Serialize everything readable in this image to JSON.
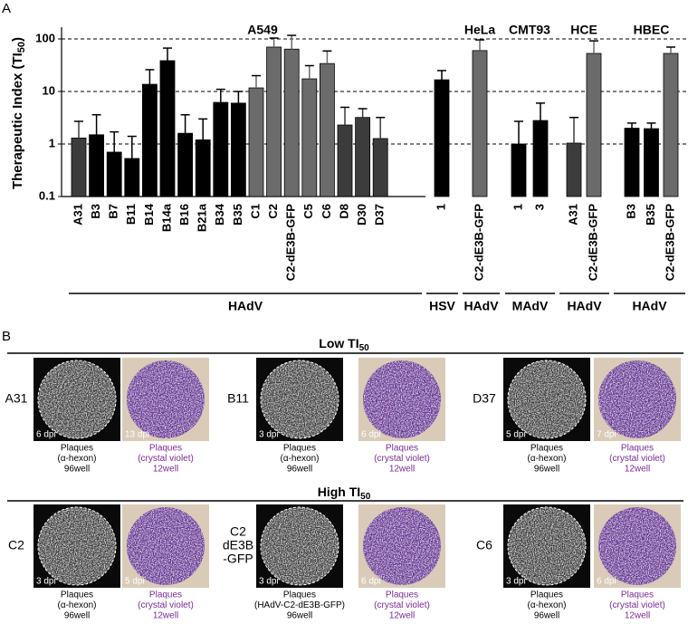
{
  "panel_labels": [
    "A",
    "B"
  ],
  "chart_data": {
    "type": "bar",
    "log_scale": true,
    "ylabel": [
      "Therapeutic Index (TI",
      "50",
      ")"
    ],
    "ylim": [
      0.1,
      100
    ],
    "yticks": [
      0.1,
      1,
      10,
      100
    ],
    "grid": "dashed",
    "groups": [
      {
        "cell_line": "A549",
        "virus": "HAdV",
        "categories": [
          "A31",
          "B3",
          "B7",
          "B11",
          "B14",
          "B14a",
          "B16",
          "B21a",
          "B34",
          "B35",
          "C1",
          "C2",
          "C2-dE3B-GFP",
          "C5",
          "C6",
          "D8",
          "D30",
          "D37"
        ],
        "values": [
          1.3,
          1.5,
          0.7,
          0.53,
          13.7,
          38.6,
          1.6,
          1.2,
          6.2,
          6,
          11.7,
          70,
          64,
          17.4,
          34,
          2.3,
          3.2,
          1.27
        ],
        "errors": [
          1.4,
          2.1,
          1.0,
          0.87,
          12.3,
          28.4,
          2.0,
          1.8,
          4.8,
          4,
          8.3,
          34,
          53,
          13.6,
          25,
          2.7,
          1.5,
          1.93
        ],
        "colors": [
          "#3c3c3c",
          "#000000",
          "#000000",
          "#000000",
          "#000000",
          "#000000",
          "#000000",
          "#000000",
          "#000000",
          "#000000",
          "#6b6b6b",
          "#6b6b6b",
          "#6b6b6b",
          "#6b6b6b",
          "#6b6b6b",
          "#3c3c3c",
          "#3c3c3c",
          "#3c3c3c"
        ]
      },
      {
        "virus": "HSV",
        "categories": [
          "1"
        ],
        "values": [
          16.7
        ],
        "errors": [
          8.3
        ],
        "colors": [
          "#000000"
        ]
      },
      {
        "cell_line": "HeLa",
        "virus": "HAdV",
        "categories": [
          "C2-dE3B-GFP"
        ],
        "values": [
          60
        ],
        "errors": [
          36
        ],
        "colors": [
          "#6b6b6b"
        ]
      },
      {
        "cell_line": "CMT93",
        "virus": "MAdV",
        "categories": [
          "1",
          "3"
        ],
        "values": [
          1.0,
          2.8
        ],
        "errors": [
          1.7,
          3.2
        ],
        "colors": [
          "#000000",
          "#000000"
        ]
      },
      {
        "cell_line": "HCE",
        "virus": "HAdV",
        "categories": [
          "A31",
          "C2-dE3B-GFP"
        ],
        "values": [
          1.04,
          53
        ],
        "errors": [
          2.16,
          39
        ],
        "colors": [
          "#3c3c3c",
          "#6b6b6b"
        ]
      },
      {
        "cell_line": "HBEC",
        "virus": "HAdV",
        "categories": [
          "B3",
          "B35",
          "C2-dE3B-GFP"
        ],
        "values": [
          2.0,
          1.96,
          53
        ],
        "errors": [
          0.5,
          0.54,
          17
        ],
        "colors": [
          "#000000",
          "#000000",
          "#6b6b6b"
        ]
      }
    ]
  },
  "panel_b": {
    "rows": [
      {
        "title": [
          "Low TI",
          "50"
        ],
        "sets": [
          {
            "virus": [
              "A31"
            ],
            "hexon": {
              "dpi": "6 dpi",
              "caption": [
                "Plaques",
                "(α-hexon)",
                "96well"
              ]
            },
            "crystal": {
              "dpi": "13 dpi",
              "caption": [
                "Plaques",
                "(crystal violet)",
                "12well"
              ]
            }
          },
          {
            "virus": [
              "B11"
            ],
            "hexon": {
              "dpi": "3 dpi",
              "caption": [
                "Plaques",
                "(α-hexon)",
                "96well"
              ]
            },
            "crystal": {
              "dpi": "6 dpi",
              "caption": [
                "Plaques",
                "(crystal violet)",
                "12well"
              ]
            }
          },
          {
            "virus": [
              "D37"
            ],
            "hexon": {
              "dpi": "5 dpi",
              "caption": [
                "Plaques",
                "(α-hexon)",
                "96well"
              ]
            },
            "crystal": {
              "dpi": "7 dpi",
              "caption": [
                "Plaques",
                "(crystal violet)",
                "12well"
              ]
            }
          }
        ]
      },
      {
        "title": [
          "High TI",
          "50"
        ],
        "sets": [
          {
            "virus": [
              "C2"
            ],
            "hexon": {
              "dpi": "3 dpi",
              "caption": [
                "Plaques",
                "(α-hexon)",
                "96well"
              ]
            },
            "crystal": {
              "dpi": "5 dpi",
              "caption": [
                "Plaques",
                "(crystal violet)",
                "12well"
              ]
            }
          },
          {
            "virus": [
              "C2",
              "dE3B",
              "-GFP"
            ],
            "hexon": {
              "dpi": "3 dpi",
              "caption": [
                "Plaques",
                "(HAdV-C2-dE3B-GFP)",
                "96well"
              ]
            },
            "crystal": {
              "dpi": "6 dpi",
              "caption": [
                "Plaques",
                "(crystal violet)",
                "12well"
              ]
            }
          },
          {
            "virus": [
              "C6"
            ],
            "hexon": {
              "dpi": "3 dpi",
              "caption": [
                "Plaques",
                "(α-hexon)",
                "96well"
              ]
            },
            "crystal": {
              "dpi": "6 dpi",
              "caption": [
                "Plaques",
                "(crystal violet)",
                "12well"
              ]
            }
          }
        ]
      }
    ]
  }
}
